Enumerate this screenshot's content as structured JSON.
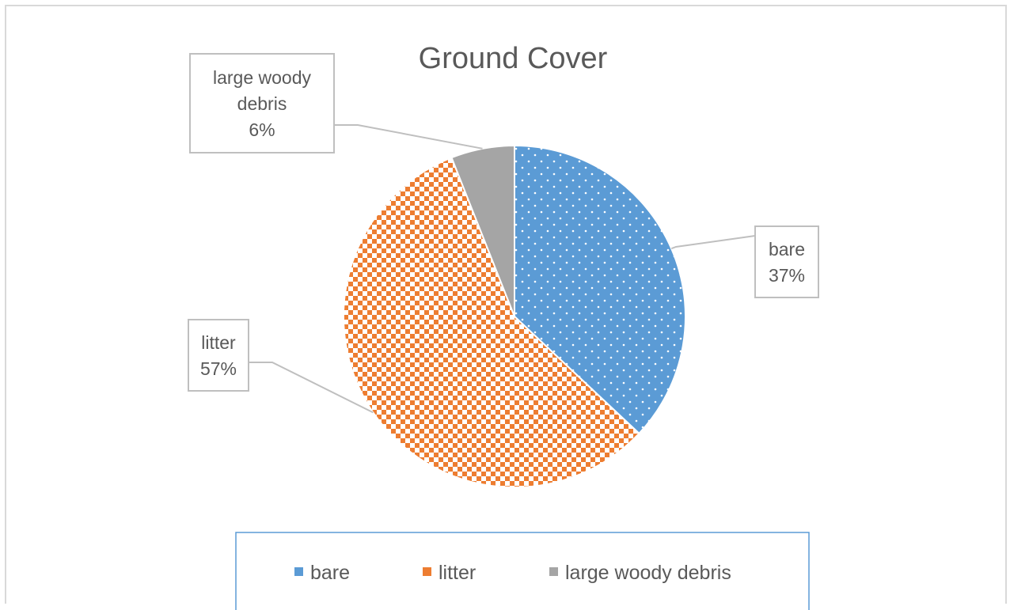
{
  "chart_data": {
    "type": "pie",
    "title": "Ground Cover",
    "slices": [
      {
        "label": "bare",
        "value": 37,
        "display": "37%",
        "color": "#5b9bd5",
        "pattern": "dots"
      },
      {
        "label": "litter",
        "value": 57,
        "display": "57%",
        "color": "#ed7d31",
        "pattern": "checker"
      },
      {
        "label": "large woody debris",
        "value": 6,
        "display": "6%",
        "color": "#a5a5a5",
        "pattern": "solid"
      }
    ],
    "legend": {
      "position": "bottom",
      "entries": [
        "bare",
        "litter",
        "large woody debris"
      ]
    }
  }
}
